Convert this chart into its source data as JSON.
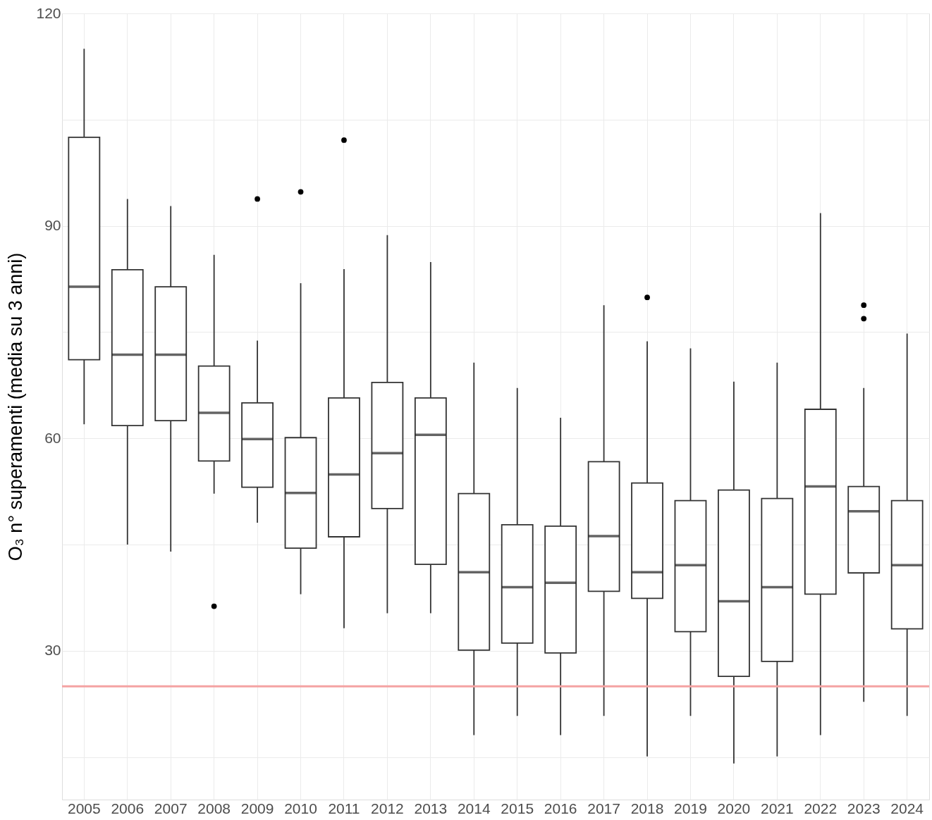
{
  "chart_data": {
    "type": "box",
    "ylabel": "O₃ n° superamenti (media su 3 anni)",
    "categories": [
      "2005",
      "2006",
      "2007",
      "2008",
      "2009",
      "2010",
      "2011",
      "2012",
      "2013",
      "2014",
      "2015",
      "2016",
      "2017",
      "2018",
      "2019",
      "2020",
      "2021",
      "2022",
      "2023",
      "2024"
    ],
    "boxes": [
      {
        "low": 62.0,
        "q1": 71.1,
        "median": 81.4,
        "q3": 102.5,
        "high": 115.0
      },
      {
        "low": 45.0,
        "q1": 61.8,
        "median": 71.8,
        "q3": 83.8,
        "high": 93.8
      },
      {
        "low": 44.0,
        "q1": 62.5,
        "median": 71.8,
        "q3": 81.4,
        "high": 92.8
      },
      {
        "low": 52.2,
        "q1": 56.8,
        "median": 63.6,
        "q3": 70.2,
        "high": 85.9,
        "outliers": [
          36.3
        ]
      },
      {
        "low": 48.1,
        "q1": 53.1,
        "median": 59.9,
        "q3": 65.0,
        "high": 73.8,
        "outliers": [
          93.8
        ]
      },
      {
        "low": 38.0,
        "q1": 44.5,
        "median": 52.3,
        "q3": 60.1,
        "high": 81.9,
        "outliers": [
          94.8
        ]
      },
      {
        "low": 33.2,
        "q1": 46.1,
        "median": 54.9,
        "q3": 65.7,
        "high": 83.9,
        "outliers": [
          102.1
        ]
      },
      {
        "low": 35.3,
        "q1": 50.1,
        "median": 57.9,
        "q3": 67.9,
        "high": 88.7
      },
      {
        "low": 35.3,
        "q1": 42.2,
        "median": 60.5,
        "q3": 65.7,
        "high": 84.9
      },
      {
        "low": 18.1,
        "q1": 30.1,
        "median": 41.1,
        "q3": 52.2,
        "high": 70.7
      },
      {
        "low": 20.8,
        "q1": 31.1,
        "median": 39.0,
        "q3": 47.8,
        "high": 67.1
      },
      {
        "low": 18.1,
        "q1": 29.7,
        "median": 39.6,
        "q3": 47.6,
        "high": 62.9
      },
      {
        "low": 20.8,
        "q1": 38.4,
        "median": 46.2,
        "q3": 56.7,
        "high": 78.8
      },
      {
        "low": 15.1,
        "q1": 37.4,
        "median": 41.1,
        "q3": 53.7,
        "high": 73.7,
        "outliers": [
          79.9
        ]
      },
      {
        "low": 20.8,
        "q1": 32.7,
        "median": 42.1,
        "q3": 51.2,
        "high": 72.7
      },
      {
        "low": 14.1,
        "q1": 26.4,
        "median": 37.0,
        "q3": 52.7,
        "high": 68.0
      },
      {
        "low": 15.1,
        "q1": 28.5,
        "median": 39.0,
        "q3": 51.5,
        "high": 70.7
      },
      {
        "low": 18.1,
        "q1": 38.0,
        "median": 53.2,
        "q3": 64.1,
        "high": 91.8
      },
      {
        "low": 22.8,
        "q1": 41.0,
        "median": 49.7,
        "q3": 53.2,
        "high": 67.1,
        "outliers": [
          78.8,
          76.9
        ]
      },
      {
        "low": 20.8,
        "q1": 33.1,
        "median": 42.1,
        "q3": 51.2,
        "high": 74.8
      }
    ],
    "ylim": [
      9,
      120
    ],
    "yticks": [
      {
        "value": 15,
        "label": null
      },
      30,
      {
        "value": 45,
        "label": null
      },
      60,
      {
        "value": 75,
        "label": null
      },
      90,
      {
        "value": 105,
        "label": null
      },
      120
    ],
    "ref_lines": [
      {
        "axis": "y",
        "value": 25,
        "color": "#f4a3a3"
      }
    ],
    "grid": true
  }
}
